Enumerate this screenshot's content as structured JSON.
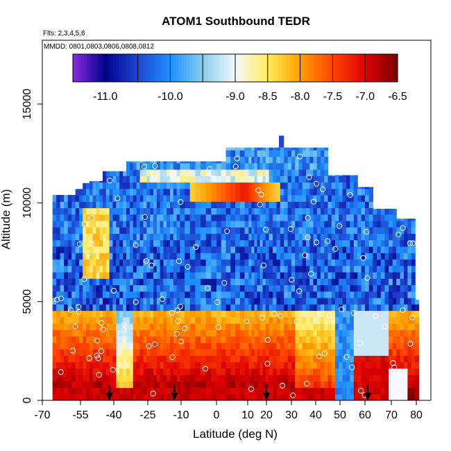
{
  "chart_data": {
    "type": "heatmap",
    "title": "ATOM1 Southbound TEDR",
    "subtitle_flights": "Flts: 2,3,4,5,6",
    "subtitle_dates": "MMDD: 0801,0803,0806,0808,0812",
    "xlabel": "Latitude (deg N)",
    "ylabel": "Altitude (m)",
    "xlim": [
      -70,
      83
    ],
    "ylim": [
      0,
      17500
    ],
    "x_ticks": [
      -70,
      -55,
      -40,
      -25,
      -10,
      0,
      10,
      20,
      30,
      40,
      50,
      60,
      70,
      80
    ],
    "y_ticks": [
      0,
      5000,
      10000,
      15000
    ],
    "colorbar": {
      "min": -11.5,
      "max": -6.5,
      "ticks": [
        -11.0,
        -10.0,
        -9.0,
        -8.5,
        -8.0,
        -7.5,
        -7.0,
        -6.5
      ],
      "tick_labels": [
        "-11.0",
        "-10.0",
        "-9.0",
        "-8.5",
        "-8.0",
        "-7.5",
        "-7.0",
        "-6.5"
      ],
      "colors": [
        "#8a2be2",
        "#00008b",
        "#1e46d2",
        "#1e90ff",
        "#87ceeb",
        "#f5f8ff",
        "#ffec5a",
        "#ff9f00",
        "#ff4500",
        "#dc0000",
        "#780000"
      ]
    },
    "arrows_lat": [
      -42,
      -13,
      20,
      61
    ],
    "grid": false,
    "legend": "colorbar-top"
  }
}
